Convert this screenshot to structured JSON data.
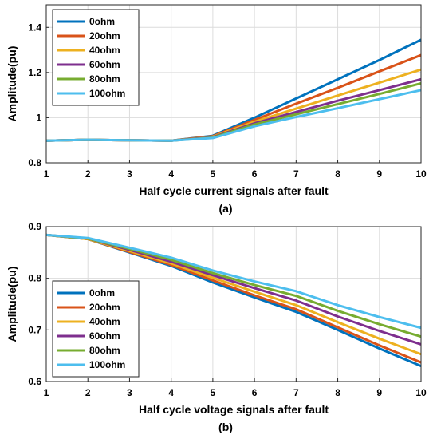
{
  "chart_data": [
    {
      "type": "line",
      "panel_label": "(a)",
      "xlabel": "Half cycle current signals after fault",
      "ylabel": "Amplitude(pu)",
      "xlim": [
        1,
        10
      ],
      "ylim": [
        0.8,
        1.5
      ],
      "xticks": [
        1,
        2,
        3,
        4,
        5,
        6,
        7,
        8,
        9,
        10
      ],
      "yticks": [
        0.8,
        1,
        1.2,
        1.4
      ],
      "ytick_labels": [
        "0.8",
        "1",
        "1.2",
        "1.4"
      ],
      "grid": true,
      "legend_position": "top-left",
      "x": [
        1,
        2,
        3,
        4,
        5,
        6,
        7,
        8,
        9,
        10
      ],
      "series": [
        {
          "name": "0ohm",
          "color": "#0072BD",
          "values": [
            0.898,
            0.902,
            0.9,
            0.898,
            0.92,
            1.0,
            1.085,
            1.17,
            1.255,
            1.345
          ]
        },
        {
          "name": "20ohm",
          "color": "#D95319",
          "values": [
            0.898,
            0.902,
            0.9,
            0.898,
            0.918,
            0.99,
            1.062,
            1.132,
            1.205,
            1.277
          ]
        },
        {
          "name": "40ohm",
          "color": "#EDB120",
          "values": [
            0.898,
            0.902,
            0.9,
            0.898,
            0.916,
            0.982,
            1.04,
            1.098,
            1.155,
            1.213
          ]
        },
        {
          "name": "60ohm",
          "color": "#7E2F8E",
          "values": [
            0.898,
            0.902,
            0.9,
            0.898,
            0.914,
            0.975,
            1.025,
            1.075,
            1.122,
            1.17
          ]
        },
        {
          "name": "80ohm",
          "color": "#77AC30",
          "values": [
            0.898,
            0.902,
            0.9,
            0.898,
            0.912,
            0.97,
            1.015,
            1.06,
            1.105,
            1.152
          ]
        },
        {
          "name": "100ohm",
          "color": "#4DBEEE",
          "values": [
            0.898,
            0.902,
            0.9,
            0.898,
            0.91,
            0.962,
            1.003,
            1.042,
            1.082,
            1.122
          ]
        }
      ]
    },
    {
      "type": "line",
      "panel_label": "(b)",
      "xlabel": "Half cycle voltage signals after fault",
      "ylabel": "Amplitude(pu)",
      "xlim": [
        1,
        10
      ],
      "ylim": [
        0.6,
        0.9
      ],
      "xticks": [
        1,
        2,
        3,
        4,
        5,
        6,
        7,
        8,
        9,
        10
      ],
      "yticks": [
        0.6,
        0.7,
        0.8,
        0.9
      ],
      "ytick_labels": [
        "0.6",
        "0.7",
        "0.8",
        "0.9"
      ],
      "grid": true,
      "legend_position": "bottom-left",
      "x": [
        1,
        2,
        3,
        4,
        5,
        6,
        7,
        8,
        9,
        10
      ],
      "series": [
        {
          "name": "0ohm",
          "color": "#0072BD",
          "values": [
            0.884,
            0.876,
            0.85,
            0.824,
            0.792,
            0.763,
            0.735,
            0.7,
            0.664,
            0.63
          ]
        },
        {
          "name": "20ohm",
          "color": "#D95319",
          "values": [
            0.884,
            0.876,
            0.851,
            0.826,
            0.796,
            0.767,
            0.74,
            0.705,
            0.67,
            0.637
          ]
        },
        {
          "name": "40ohm",
          "color": "#EDB120",
          "values": [
            0.884,
            0.876,
            0.853,
            0.829,
            0.801,
            0.774,
            0.748,
            0.715,
            0.683,
            0.653
          ]
        },
        {
          "name": "60ohm",
          "color": "#7E2F8E",
          "values": [
            0.884,
            0.877,
            0.855,
            0.832,
            0.806,
            0.781,
            0.757,
            0.726,
            0.698,
            0.672
          ]
        },
        {
          "name": "80ohm",
          "color": "#77AC30",
          "values": [
            0.884,
            0.877,
            0.857,
            0.836,
            0.81,
            0.787,
            0.766,
            0.737,
            0.711,
            0.687
          ]
        },
        {
          "name": "100ohm",
          "color": "#4DBEEE",
          "values": [
            0.884,
            0.878,
            0.859,
            0.84,
            0.815,
            0.794,
            0.775,
            0.748,
            0.725,
            0.704
          ]
        }
      ]
    }
  ]
}
